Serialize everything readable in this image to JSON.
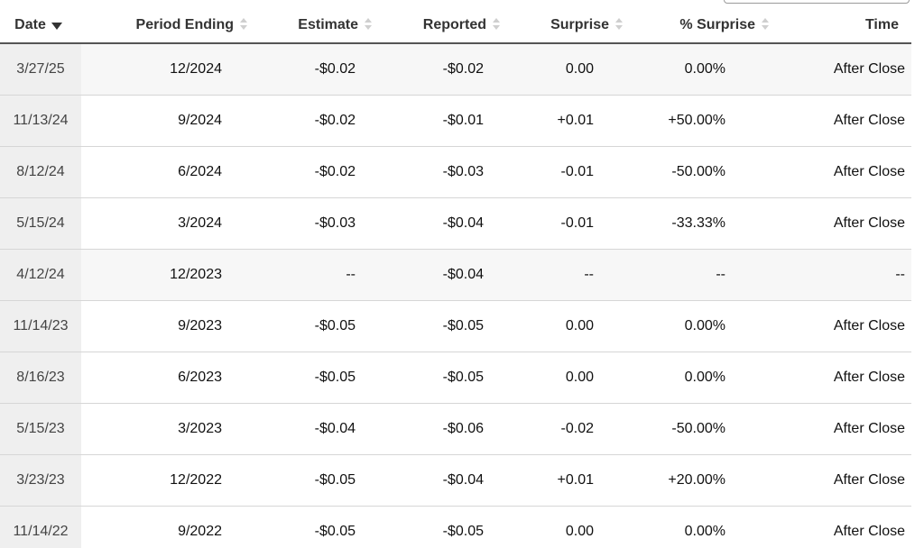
{
  "table": {
    "columns": [
      {
        "key": "date",
        "label": "Date",
        "sort": "descending"
      },
      {
        "key": "period_ending",
        "label": "Period Ending",
        "sort": "none"
      },
      {
        "key": "estimate",
        "label": "Estimate",
        "sort": "none"
      },
      {
        "key": "reported",
        "label": "Reported",
        "sort": "none"
      },
      {
        "key": "surprise",
        "label": "Surprise",
        "sort": "none"
      },
      {
        "key": "pct_surprise",
        "label": "% Surprise",
        "sort": "none"
      },
      {
        "key": "time",
        "label": "Time",
        "sort": "none"
      }
    ],
    "rows": [
      {
        "date": "3/27/25",
        "period_ending": "12/2024",
        "estimate": "-$0.02",
        "reported": "-$0.02",
        "surprise": "0.00",
        "pct_surprise": "0.00%",
        "time": "After Close",
        "tone": "neutral"
      },
      {
        "date": "11/13/24",
        "period_ending": "9/2024",
        "estimate": "-$0.02",
        "reported": "-$0.01",
        "surprise": "+0.01",
        "pct_surprise": "+50.00%",
        "time": "After Close",
        "tone": "positive"
      },
      {
        "date": "8/12/24",
        "period_ending": "6/2024",
        "estimate": "-$0.02",
        "reported": "-$0.03",
        "surprise": "-0.01",
        "pct_surprise": "-50.00%",
        "time": "After Close",
        "tone": "negative"
      },
      {
        "date": "5/15/24",
        "period_ending": "3/2024",
        "estimate": "-$0.03",
        "reported": "-$0.04",
        "surprise": "-0.01",
        "pct_surprise": "-33.33%",
        "time": "After Close",
        "tone": "negative"
      },
      {
        "date": "4/12/24",
        "period_ending": "12/2023",
        "estimate": "--",
        "reported": "-$0.04",
        "surprise": "--",
        "pct_surprise": "--",
        "time": "--",
        "tone": "neutral"
      },
      {
        "date": "11/14/23",
        "period_ending": "9/2023",
        "estimate": "-$0.05",
        "reported": "-$0.05",
        "surprise": "0.00",
        "pct_surprise": "0.00%",
        "time": "After Close",
        "tone": "neutral"
      },
      {
        "date": "8/16/23",
        "period_ending": "6/2023",
        "estimate": "-$0.05",
        "reported": "-$0.05",
        "surprise": "0.00",
        "pct_surprise": "0.00%",
        "time": "After Close",
        "tone": "neutral"
      },
      {
        "date": "5/15/23",
        "period_ending": "3/2023",
        "estimate": "-$0.04",
        "reported": "-$0.06",
        "surprise": "-0.02",
        "pct_surprise": "-50.00%",
        "time": "After Close",
        "tone": "negative"
      },
      {
        "date": "3/23/23",
        "period_ending": "12/2022",
        "estimate": "-$0.05",
        "reported": "-$0.04",
        "surprise": "+0.01",
        "pct_surprise": "+20.00%",
        "time": "After Close",
        "tone": "positive"
      },
      {
        "date": "11/14/22",
        "period_ending": "9/2022",
        "estimate": "-$0.05",
        "reported": "-$0.05",
        "surprise": "0.00",
        "pct_surprise": "0.00%",
        "time": "After Close",
        "tone": "neutral"
      }
    ]
  },
  "colors": {
    "positive": "#1a8a1a",
    "negative": "#d0142c",
    "date_column_bg": "#efefef",
    "shaded_row_bg": "#f7f7f7"
  },
  "icons": {
    "active_sort": "sort-descending-icon",
    "inactive_sort": "sort-unsorted-icon"
  }
}
